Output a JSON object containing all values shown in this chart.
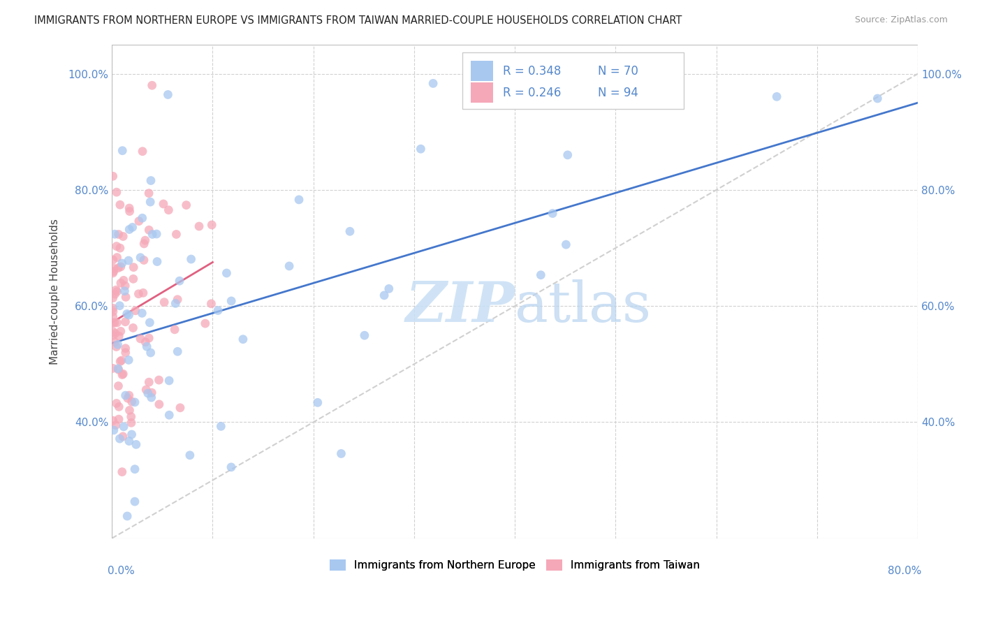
{
  "title": "IMMIGRANTS FROM NORTHERN EUROPE VS IMMIGRANTS FROM TAIWAN MARRIED-COUPLE HOUSEHOLDS CORRELATION CHART",
  "source": "Source: ZipAtlas.com",
  "ylabel": "Married-couple Households",
  "xlim": [
    0.0,
    0.8
  ],
  "ylim": [
    0.2,
    1.05
  ],
  "R_northern": 0.348,
  "N_northern": 70,
  "R_taiwan": 0.246,
  "N_taiwan": 94,
  "color_northern": "#a8c8f0",
  "color_taiwan": "#f5a8b8",
  "trendline_northern_color": "#4477cc",
  "trendline_taiwan_color": "#e06080",
  "trendline_diag_color": "#d0d0d0",
  "background_color": "#ffffff",
  "seed": 123
}
